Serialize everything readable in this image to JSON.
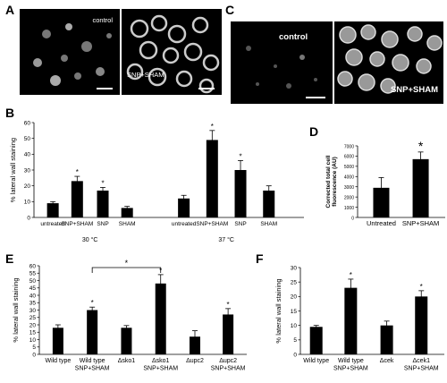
{
  "panels": {
    "A": {
      "letter": "A",
      "left_label": "control",
      "right_label": "SNP+SHAM"
    },
    "C": {
      "letter": "C",
      "left_label": "control",
      "right_label": "SNP+SHAM"
    },
    "B": {
      "letter": "B"
    },
    "D": {
      "letter": "D"
    },
    "E": {
      "letter": "E"
    },
    "F": {
      "letter": "F"
    }
  },
  "chart_data": [
    {
      "id": "B",
      "type": "bar",
      "ylabel": "% lateral wall staining",
      "ylim": [
        0,
        60
      ],
      "yticks": [
        0,
        10,
        20,
        30,
        40,
        50,
        60
      ],
      "categories": [
        "untreated",
        "SNP+SHAM",
        "SNP",
        "SHAM",
        "untreated",
        "SNP+SHAM",
        "SNP",
        "SHAM"
      ],
      "values": [
        9,
        23,
        17,
        6,
        12,
        49,
        30,
        17
      ],
      "errors": [
        1,
        3,
        2,
        1,
        2,
        6,
        6,
        3
      ],
      "significance": [
        "",
        "*",
        "*",
        "",
        "",
        "*",
        "*",
        ""
      ],
      "groups": [
        {
          "label": "30 °C",
          "from": 0,
          "to": 3
        },
        {
          "label": "37 °C",
          "from": 4,
          "to": 7
        }
      ]
    },
    {
      "id": "D",
      "type": "bar",
      "ylabel": "Corrected total cell fluorescence (AU)",
      "ylim": [
        0,
        7000
      ],
      "yticks": [
        0,
        1000,
        2000,
        3000,
        4000,
        5000,
        6000,
        7000
      ],
      "categories": [
        "Untreated",
        "SNP+SHAM"
      ],
      "values": [
        2900,
        5700
      ],
      "errors": [
        1000,
        700
      ],
      "significance": [
        "",
        "*"
      ]
    },
    {
      "id": "E",
      "type": "bar",
      "ylabel": "% lateral wall staining",
      "ylim": [
        0,
        60
      ],
      "yticks": [
        0,
        5,
        10,
        15,
        20,
        25,
        30,
        35,
        40,
        45,
        50,
        55,
        60
      ],
      "categories": [
        [
          "Wild type"
        ],
        [
          "Wild type",
          "SNP+SHAM"
        ],
        [
          "Δsko1"
        ],
        [
          "Δsko1",
          "SNP+SHAM"
        ],
        [
          "Δupc2"
        ],
        [
          "Δupc2",
          "SNP+SHAM"
        ]
      ],
      "values": [
        18,
        30,
        18,
        48,
        12,
        27
      ],
      "errors": [
        2,
        2,
        1.5,
        6,
        4,
        4
      ],
      "significance": [
        "",
        "*",
        "",
        "*",
        "",
        "*"
      ],
      "bracket": {
        "from": 1,
        "to": 3,
        "label": "*"
      }
    },
    {
      "id": "F",
      "type": "bar",
      "ylabel": "% lateral wall staining",
      "ylim": [
        0,
        30
      ],
      "yticks": [
        0,
        5,
        10,
        15,
        20,
        25,
        30
      ],
      "categories": [
        [
          "Wild type"
        ],
        [
          "Wild type",
          "SNP+SHAM"
        ],
        [
          "Δcek"
        ],
        [
          "Δcek1",
          "SNP+SHAM"
        ]
      ],
      "values": [
        9.5,
        23,
        10,
        20
      ],
      "errors": [
        0.5,
        3,
        1.5,
        2
      ],
      "significance": [
        "",
        "*",
        "",
        "*"
      ]
    }
  ]
}
